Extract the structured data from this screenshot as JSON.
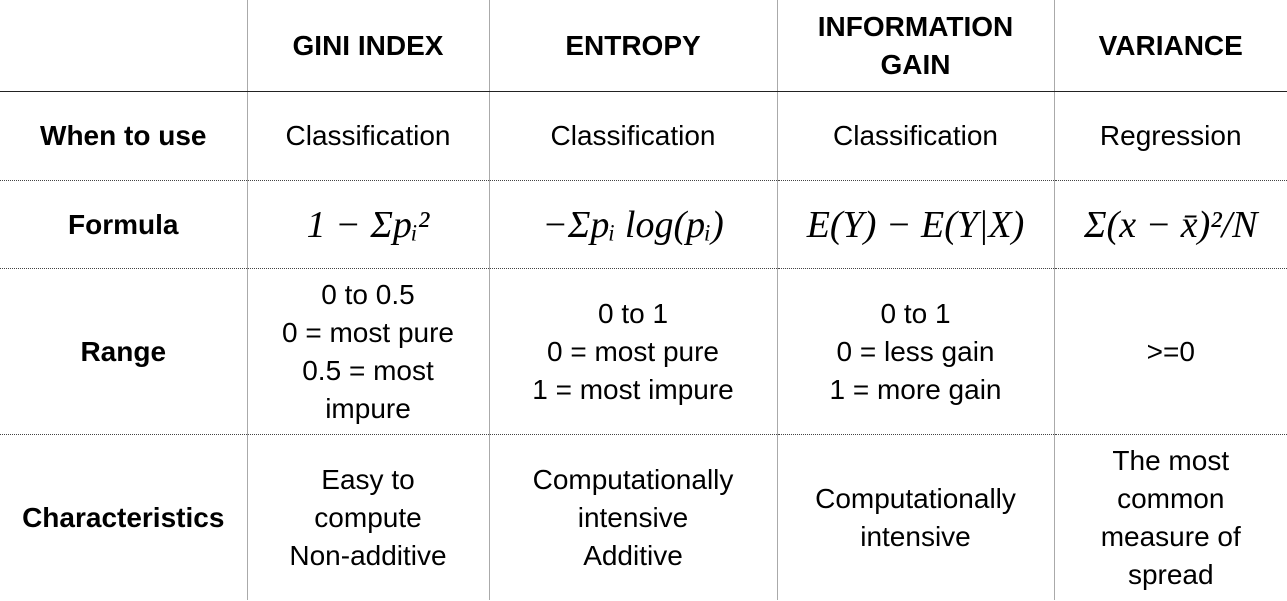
{
  "table": {
    "header": [
      "",
      "GINI INDEX",
      "ENTROPY",
      "INFORMATION GAIN",
      "VARIANCE"
    ],
    "rows": [
      [
        [
          "When to use"
        ],
        [
          "Classification"
        ],
        [
          "Classification"
        ],
        [
          "Classification"
        ],
        [
          "Regression"
        ]
      ],
      [
        [
          "Formula"
        ],
        [
          "1 − Σpᵢ²"
        ],
        [
          "−Σpᵢ log(pᵢ)"
        ],
        [
          "E(Y) − E(Y|X)"
        ],
        [
          "Σ(x − x̄)²/N"
        ]
      ],
      [
        [
          "Range"
        ],
        [
          "0 to 0.5",
          "0 = most pure",
          "0.5 = most",
          "impure"
        ],
        [
          "0 to 1",
          "0 = most pure",
          "1 = most impure"
        ],
        [
          "0 to 1",
          "0 = less gain",
          "1 = more gain"
        ],
        [
          ">=0"
        ]
      ],
      [
        [
          "Characteristics"
        ],
        [
          "Easy to",
          "compute",
          "Non-additive"
        ],
        [
          "Computationally",
          "intensive",
          "Additive"
        ],
        [
          "Computationally",
          "intensive"
        ],
        [
          "The most",
          "common",
          "measure of",
          "spread"
        ]
      ]
    ]
  }
}
